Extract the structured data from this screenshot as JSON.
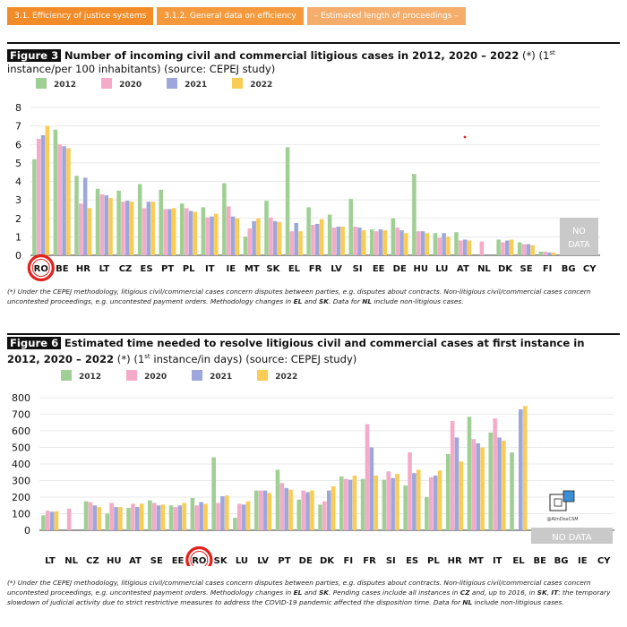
{
  "breadcrumbs": [
    "3.1. Efficiency of justice systems",
    "3.1.2. General data on efficiency",
    "– Estimated length of proceedings –"
  ],
  "colors": {
    "2012": "#9fcf94",
    "2020": "#f4aac8",
    "2021": "#9ea7dc",
    "2022": "#f9cc56"
  },
  "figure3": {
    "tag": "Figure 3",
    "title": "Number of incoming civil and commercial litigious cases in 2012, 2020 – 2022",
    "title_rest_1": " (*) (1",
    "sup": "st",
    "title_rest_2": " instance/per 100 inhabitants) (source: CEPEJ study)",
    "no_data": [
      "NO",
      "DATA"
    ],
    "note_1": "(*) Under the CEPEJ methodology, litigious civil/commercial cases concern disputes between parties, e.g. disputes about contracts. Non-litigious civil/commercial cases concern uncontested proceedings, e.g. uncontested payment orders. Methodology changes in ",
    "note_el": "EL",
    "note_2": " and ",
    "note_sk": "SK",
    "note_3": ". Data for ",
    "note_nl": "NL",
    "note_4": " include non-litigious cases."
  },
  "figure6": {
    "tag": "Figure 6",
    "title": "Estimated time needed to resolve litigious civil and commercial cases at first instance in 2012, 2020 – 2022",
    "title_rest_1": " (*) (1",
    "sup": "st",
    "title_rest_2": " instance/in days) (source: CEPEJ study)",
    "no_data": "NO DATA",
    "note_1": "(*) Under the CEPEJ methodology, litigious civil/commercial cases concern disputes between parties, e.g. disputes about contracts. Non-litigious civil/commercial cases concern uncontested proceedings, e.g. uncontested payment orders. Methodology changes in ",
    "note_el": "EL",
    "note_2": " and ",
    "note_sk": "SK",
    "note_3": ". Pending cases include all instances in ",
    "note_cz": "CZ",
    "note_4": " and, up to 2016, in ",
    "note_sk2": "SK",
    "note_5": ", ",
    "note_it": "IT",
    "note_6": ": the temporary slowdown of judicial activity due to strict restrictive measures to address the COVID-19 pandemic affected the disposition time. Data for ",
    "note_nl": "NL",
    "note_7": " include non-litigious cases."
  },
  "watermark": "@AlinDoxCSM",
  "chart_data": [
    {
      "type": "bar",
      "title": "Number of incoming civil and commercial litigious cases in 2012, 2020 – 2022",
      "ylim": [
        0,
        8
      ],
      "yticks": [
        0,
        1,
        2,
        3,
        4,
        5,
        6,
        7,
        8
      ],
      "grid": true,
      "legend": "top",
      "highlight": "RO",
      "categories": [
        "RO",
        "BE",
        "HR",
        "LT",
        "CZ",
        "ES",
        "PT",
        "PL",
        "IT",
        "IE",
        "MT",
        "SK",
        "EL",
        "FR",
        "LV",
        "SI",
        "EE",
        "DE",
        "HU",
        "LU",
        "AT",
        "NL",
        "DK",
        "SE",
        "FI",
        "BG",
        "CY"
      ],
      "series": [
        {
          "name": "2012",
          "values": [
            5.2,
            6.8,
            4.3,
            3.6,
            3.5,
            3.85,
            3.55,
            2.8,
            2.6,
            3.9,
            1.0,
            2.95,
            5.85,
            2.6,
            2.2,
            3.05,
            1.4,
            2.0,
            4.4,
            1.2,
            1.25,
            null,
            0.85,
            0.7,
            0.2,
            null,
            null
          ]
        },
        {
          "name": "2020",
          "values": [
            6.3,
            6.0,
            2.8,
            3.3,
            2.9,
            2.55,
            2.5,
            2.55,
            2.05,
            2.65,
            1.45,
            2.05,
            1.3,
            1.65,
            1.5,
            1.55,
            1.3,
            1.5,
            1.3,
            0.95,
            0.8,
            0.75,
            0.7,
            0.6,
            0.2,
            null,
            null
          ]
        },
        {
          "name": "2021",
          "values": [
            6.5,
            5.9,
            4.2,
            3.25,
            2.95,
            2.9,
            2.5,
            2.4,
            2.1,
            2.1,
            1.85,
            1.85,
            1.75,
            1.7,
            1.55,
            1.5,
            1.4,
            1.35,
            1.3,
            1.2,
            0.85,
            null,
            0.8,
            0.6,
            0.15,
            null,
            null
          ]
        },
        {
          "name": "2022",
          "values": [
            7.0,
            5.8,
            2.55,
            3.1,
            2.9,
            2.9,
            2.55,
            2.35,
            2.25,
            2.0,
            2.0,
            1.8,
            1.3,
            1.95,
            1.55,
            1.35,
            1.35,
            1.2,
            1.2,
            1.0,
            0.8,
            null,
            0.85,
            0.55,
            0.15,
            null,
            null
          ]
        }
      ]
    },
    {
      "type": "bar",
      "title": "Estimated time needed to resolve litigious civil and commercial cases at first instance in 2012, 2020 – 2022",
      "ylim": [
        0,
        800
      ],
      "yticks": [
        0,
        100,
        200,
        300,
        400,
        500,
        600,
        700,
        800
      ],
      "grid": true,
      "legend": "top",
      "highlight": "RO",
      "categories": [
        "LT",
        "NL",
        "CZ",
        "HU",
        "AT",
        "SE",
        "EE",
        "RO",
        "SK",
        "LU",
        "LV",
        "PT",
        "DE",
        "DK",
        "FI",
        "FR",
        "SI",
        "ES",
        "PL",
        "HR",
        "MT",
        "IT",
        "EL",
        "BE",
        "BG",
        "IE",
        "CY"
      ],
      "series": [
        {
          "name": "2012",
          "values": [
            90,
            null,
            175,
            100,
            135,
            180,
            150,
            195,
            440,
            75,
            240,
            365,
            185,
            155,
            325,
            310,
            305,
            270,
            200,
            460,
            685,
            590,
            470,
            null,
            null,
            null,
            null
          ]
        },
        {
          "name": "2020",
          "values": [
            118,
            130,
            170,
            165,
            160,
            165,
            140,
            150,
            165,
            160,
            240,
            285,
            240,
            175,
            310,
            640,
            355,
            470,
            320,
            660,
            550,
            675,
            null,
            null,
            null,
            null,
            null
          ]
        },
        {
          "name": "2021",
          "values": [
            112,
            null,
            150,
            140,
            140,
            150,
            150,
            170,
            205,
            155,
            240,
            255,
            230,
            240,
            305,
            500,
            315,
            345,
            330,
            560,
            525,
            560,
            730,
            null,
            null,
            null,
            null
          ]
        },
        {
          "name": "2022",
          "values": [
            115,
            null,
            140,
            140,
            160,
            155,
            165,
            160,
            210,
            175,
            225,
            245,
            240,
            265,
            330,
            330,
            340,
            365,
            360,
            415,
            500,
            540,
            750,
            null,
            null,
            null,
            null
          ]
        }
      ]
    }
  ]
}
